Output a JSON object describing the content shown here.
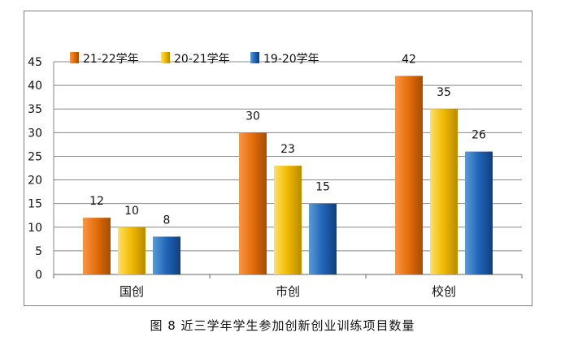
{
  "caption": "图 8   近三学年学生参加创新创业训练项目数量",
  "chart_data": {
    "type": "bar",
    "categories": [
      "国创",
      "市创",
      "校创"
    ],
    "series": [
      {
        "name": "21-22学年",
        "values": [
          12,
          30,
          42
        ],
        "color": "#e36c09"
      },
      {
        "name": "20-21学年",
        "values": [
          10,
          23,
          35
        ],
        "color": "#f0b800"
      },
      {
        "name": "19-20学年",
        "values": [
          8,
          15,
          26
        ],
        "color": "#1f64b8"
      }
    ],
    "ylim": [
      0,
      45
    ],
    "yticks": [
      0,
      5,
      10,
      15,
      20,
      25,
      30,
      35,
      40,
      45
    ],
    "grid": true,
    "legend": "top-left",
    "show_data_labels": true
  }
}
